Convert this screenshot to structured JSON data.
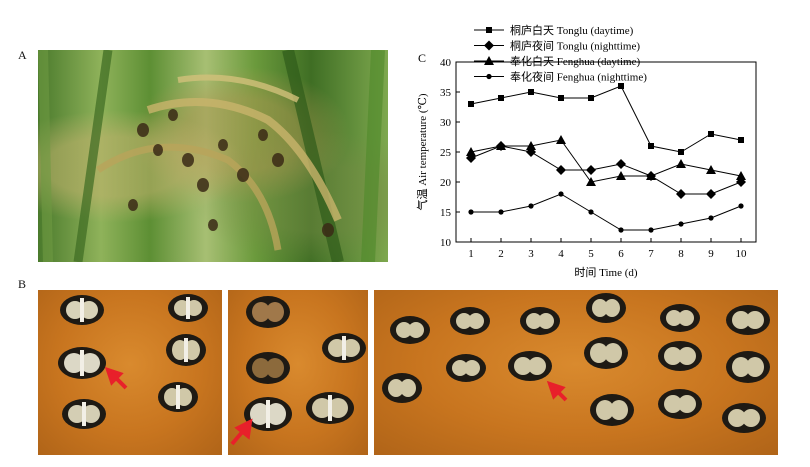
{
  "figure": {
    "panel_a_label": "A",
    "panel_b_label": "B",
    "panel_c_label": "C"
  },
  "chart_data": {
    "type": "line",
    "title": "",
    "xlabel": "时间 Time (d)",
    "ylabel": "气温 Air temperature (℃)",
    "xlim": [
      0.5,
      10.5
    ],
    "ylim": [
      10,
      40
    ],
    "xticks": [
      1,
      2,
      3,
      4,
      5,
      6,
      7,
      8,
      9,
      10
    ],
    "yticks": [
      10,
      15,
      20,
      25,
      30,
      35,
      40
    ],
    "grid": false,
    "legend_position": "top-left",
    "x": [
      1,
      2,
      3,
      4,
      5,
      6,
      7,
      8,
      9,
      10
    ],
    "series": [
      {
        "name": "桐庐白天 Tonglu (daytime)",
        "marker": "square",
        "values": [
          33,
          34,
          35,
          34,
          34,
          36,
          26,
          25,
          28,
          27
        ]
      },
      {
        "name": "桐庐夜间 Tonglu (nighttime)",
        "marker": "diamond",
        "values": [
          24,
          26,
          25,
          22,
          22,
          23,
          21,
          18,
          18,
          20
        ]
      },
      {
        "name": "奉化白天 Fenghua (daytime)",
        "marker": "triangle",
        "values": [
          25,
          26,
          26,
          27,
          20,
          21,
          21,
          23,
          22,
          21
        ]
      },
      {
        "name": "奉化夜间 Fenghua (nighttime)",
        "marker": "circle",
        "values": [
          15,
          15,
          16,
          18,
          15,
          12,
          12,
          13,
          14,
          16
        ]
      }
    ],
    "line_color": "#000000"
  }
}
